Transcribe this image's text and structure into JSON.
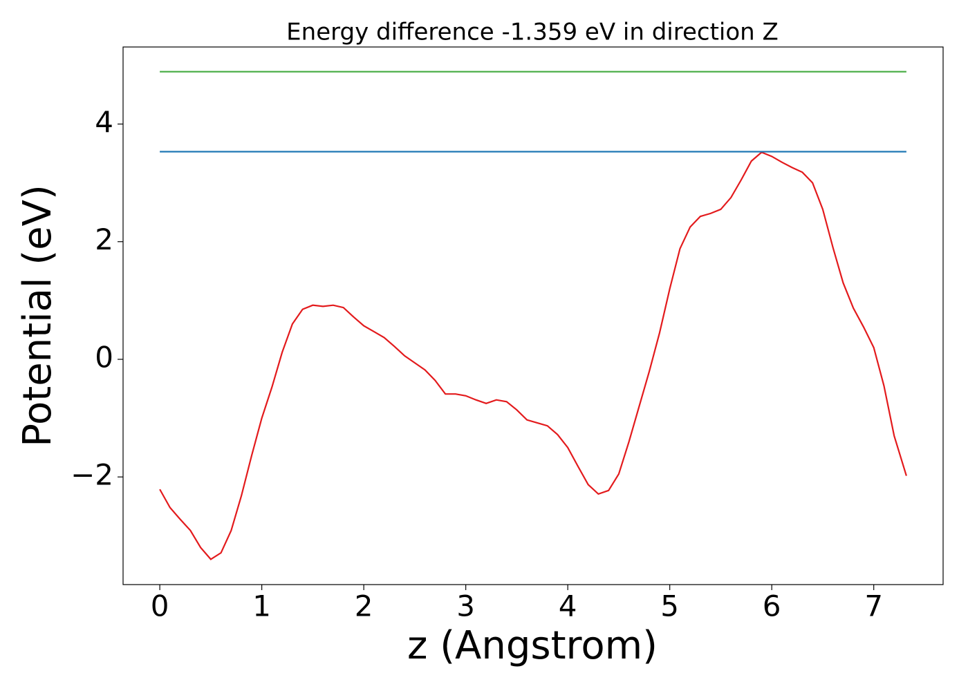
{
  "chart_data": {
    "type": "line",
    "title": "Energy difference -1.359 eV in direction Z",
    "x_label": "z (Angstrom)",
    "y_label": "Potential (eV)",
    "xlim": [
      -0.36,
      7.68
    ],
    "ylim": [
      -3.83,
      5.31
    ],
    "xticks": [
      0,
      1,
      2,
      3,
      4,
      5,
      6,
      7
    ],
    "yticks": [
      {
        "value": -2,
        "label": "−2"
      },
      0,
      2,
      4
    ],
    "grid": false,
    "series": [
      {
        "color": "#e31a1c",
        "x": [
          0,
          0.1,
          0.2,
          0.3,
          0.4,
          0.5,
          0.6,
          0.7,
          0.8,
          0.9,
          1.0,
          1.1,
          1.2,
          1.3,
          1.4,
          1.5,
          1.6,
          1.7,
          1.8,
          1.9,
          2.0,
          2.1,
          2.2,
          2.3,
          2.4,
          2.5,
          2.6,
          2.7,
          2.8,
          2.9,
          3.0,
          3.1,
          3.2,
          3.3,
          3.4,
          3.5,
          3.6,
          3.7,
          3.8,
          3.9,
          4.0,
          4.1,
          4.2,
          4.3,
          4.4,
          4.5,
          4.6,
          4.7,
          4.8,
          4.9,
          5.0,
          5.1,
          5.2,
          5.3,
          5.4,
          5.5,
          5.6,
          5.7,
          5.8,
          5.9,
          6.0,
          6.1,
          6.2,
          6.3,
          6.4,
          6.5,
          6.6,
          6.7,
          6.8,
          6.9,
          7.0,
          7.1,
          7.2,
          7.32
        ],
        "values": [
          -2.21,
          -2.52,
          -2.72,
          -2.91,
          -3.2,
          -3.4,
          -3.29,
          -2.91,
          -2.32,
          -1.64,
          -1.0,
          -0.47,
          0.12,
          0.6,
          0.85,
          0.92,
          0.9,
          0.92,
          0.88,
          0.72,
          0.57,
          0.47,
          0.37,
          0.22,
          0.06,
          -0.06,
          -0.18,
          -0.36,
          -0.59,
          -0.59,
          -0.62,
          -0.69,
          -0.75,
          -0.69,
          -0.72,
          -0.86,
          -1.03,
          -1.08,
          -1.13,
          -1.28,
          -1.5,
          -1.82,
          -2.13,
          -2.29,
          -2.23,
          -1.95,
          -1.4,
          -0.8,
          -0.2,
          0.45,
          1.2,
          1.88,
          2.25,
          2.43,
          2.48,
          2.55,
          2.75,
          3.05,
          3.37,
          3.52,
          3.45,
          3.35,
          3.26,
          3.18,
          3.0,
          2.55,
          1.9,
          1.3,
          0.87,
          0.55,
          0.2,
          -0.45,
          -1.3,
          -1.98
        ]
      },
      {
        "color": "#1f77b4",
        "x": [
          0,
          7.32
        ],
        "values": [
          3.53,
          3.53
        ]
      },
      {
        "color": "#4daf4a",
        "x": [
          0,
          7.32
        ],
        "values": [
          4.89,
          4.89
        ]
      }
    ]
  }
}
